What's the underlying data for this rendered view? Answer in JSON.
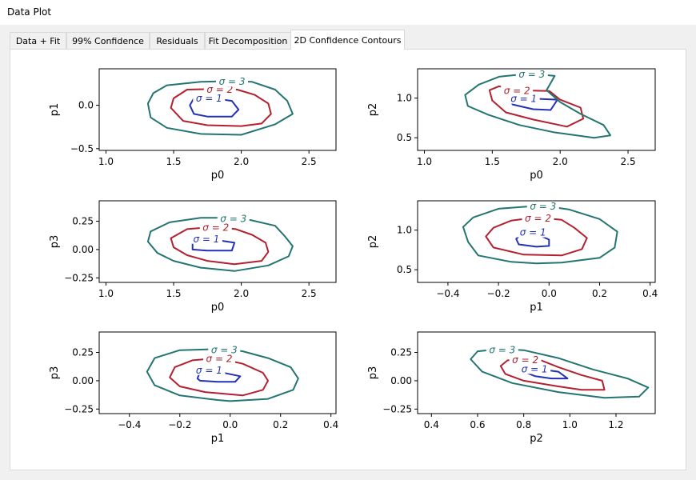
{
  "window": {
    "title": "Data Plot"
  },
  "tabs": [
    {
      "label": "Data + Fit"
    },
    {
      "label": "99% Confidence"
    },
    {
      "label": "Residuals"
    },
    {
      "label": "Fit Decomposition"
    },
    {
      "label": "2D Confidence Contours",
      "active": true
    }
  ],
  "colors": {
    "sigma1": "#2231b8",
    "sigma2": "#b3202f",
    "sigma3": "#237572"
  },
  "contour_labels": [
    "σ = 1",
    "σ = 2",
    "σ = 3"
  ],
  "chart_data": [
    {
      "type": "contour",
      "xlabel": "p0",
      "ylabel": "p1",
      "xlim": [
        0.95,
        2.7
      ],
      "ylim": [
        -0.52,
        0.42
      ],
      "xticks": [
        1.0,
        1.5,
        2.0,
        2.5
      ],
      "xtick_labels": [
        "1.0",
        "1.5",
        "2.0",
        "2.5"
      ],
      "yticks": [
        0.0,
        -0.5
      ],
      "ytick_labels": [
        "0.0",
        "−0.5"
      ],
      "contours": [
        {
          "level": "σ = 1",
          "points": [
            [
              1.75,
              0.09
            ],
            [
              1.65,
              0.08
            ],
            [
              1.62,
              0.0
            ],
            [
              1.65,
              -0.1
            ],
            [
              1.75,
              -0.13
            ],
            [
              1.93,
              -0.13
            ],
            [
              1.98,
              -0.05
            ],
            [
              1.93,
              0.05
            ]
          ]
        },
        {
          "level": "σ = 2",
          "points": [
            [
              1.83,
              0.19
            ],
            [
              1.6,
              0.18
            ],
            [
              1.5,
              0.08
            ],
            [
              1.48,
              -0.03
            ],
            [
              1.57,
              -0.18
            ],
            [
              1.75,
              -0.23
            ],
            [
              2.0,
              -0.24
            ],
            [
              2.15,
              -0.21
            ],
            [
              2.22,
              -0.1
            ],
            [
              2.2,
              0.02
            ],
            [
              2.1,
              0.12
            ],
            [
              1.97,
              0.18
            ]
          ]
        },
        {
          "level": "σ = 3",
          "points": [
            [
              1.92,
              0.28
            ],
            [
              1.7,
              0.27
            ],
            [
              1.45,
              0.23
            ],
            [
              1.35,
              0.14
            ],
            [
              1.31,
              0.02
            ],
            [
              1.33,
              -0.14
            ],
            [
              1.45,
              -0.26
            ],
            [
              1.7,
              -0.33
            ],
            [
              2.0,
              -0.34
            ],
            [
              2.25,
              -0.22
            ],
            [
              2.38,
              -0.1
            ],
            [
              2.34,
              0.05
            ],
            [
              2.25,
              0.18
            ],
            [
              2.08,
              0.27
            ]
          ]
        }
      ]
    },
    {
      "type": "contour",
      "xlabel": "p0",
      "ylabel": "p2",
      "xlim": [
        0.95,
        2.7
      ],
      "ylim": [
        0.34,
        1.37
      ],
      "xticks": [
        1.0,
        1.5,
        2.0,
        2.5
      ],
      "xtick_labels": [
        "1.0",
        "1.5",
        "2.0",
        "2.5"
      ],
      "yticks": [
        0.5,
        1.0
      ],
      "ytick_labels": [
        "0.5",
        "1.0"
      ],
      "contours": [
        {
          "level": "σ = 1",
          "points": [
            [
              1.72,
              1.0
            ],
            [
              1.68,
              1.05
            ],
            [
              1.62,
              1.01
            ],
            [
              1.65,
              0.92
            ],
            [
              1.8,
              0.86
            ],
            [
              1.93,
              0.85
            ],
            [
              1.98,
              0.98
            ]
          ]
        },
        {
          "level": "σ = 2",
          "points": [
            [
              1.67,
              1.1
            ],
            [
              1.55,
              1.15
            ],
            [
              1.48,
              1.1
            ],
            [
              1.5,
              0.97
            ],
            [
              1.6,
              0.82
            ],
            [
              1.8,
              0.73
            ],
            [
              2.05,
              0.64
            ],
            [
              2.17,
              0.74
            ],
            [
              2.15,
              0.88
            ],
            [
              2.0,
              0.98
            ],
            [
              1.92,
              1.09
            ]
          ]
        },
        {
          "level": "σ = 3",
          "points": [
            [
              1.78,
              1.31
            ],
            [
              1.55,
              1.27
            ],
            [
              1.4,
              1.17
            ],
            [
              1.3,
              1.04
            ],
            [
              1.32,
              0.9
            ],
            [
              1.47,
              0.79
            ],
            [
              1.7,
              0.66
            ],
            [
              1.95,
              0.57
            ],
            [
              2.25,
              0.5
            ],
            [
              2.37,
              0.53
            ],
            [
              2.32,
              0.66
            ],
            [
              2.15,
              0.8
            ],
            [
              2.0,
              0.95
            ],
            [
              1.9,
              1.1
            ],
            [
              1.96,
              1.28
            ]
          ]
        }
      ]
    },
    {
      "type": "contour",
      "xlabel": "p0",
      "ylabel": "p3",
      "xlim": [
        0.95,
        2.7
      ],
      "ylim": [
        -0.29,
        0.43
      ],
      "xticks": [
        1.0,
        1.5,
        2.0,
        2.5
      ],
      "xtick_labels": [
        "1.0",
        "1.5",
        "2.0",
        "2.5"
      ],
      "yticks": [
        0.25,
        0.0,
        -0.25
      ],
      "ytick_labels": [
        "0.25",
        "0.00",
        "−0.25"
      ],
      "contours": [
        {
          "level": "σ = 1",
          "points": [
            [
              1.73,
              0.1
            ],
            [
              1.64,
              0.07
            ],
            [
              1.64,
              0.0
            ],
            [
              1.75,
              -0.01
            ],
            [
              1.93,
              -0.01
            ],
            [
              1.95,
              0.06
            ]
          ]
        },
        {
          "level": "σ = 2",
          "points": [
            [
              1.8,
              0.2
            ],
            [
              1.6,
              0.18
            ],
            [
              1.48,
              0.1
            ],
            [
              1.5,
              0.02
            ],
            [
              1.6,
              -0.05
            ],
            [
              1.75,
              -0.1
            ],
            [
              1.95,
              -0.13
            ],
            [
              2.15,
              -0.1
            ],
            [
              2.2,
              -0.02
            ],
            [
              2.18,
              0.06
            ],
            [
              2.08,
              0.13
            ],
            [
              1.96,
              0.18
            ]
          ]
        },
        {
          "level": "σ = 3",
          "points": [
            [
              1.93,
              0.28
            ],
            [
              1.7,
              0.28
            ],
            [
              1.47,
              0.24
            ],
            [
              1.33,
              0.16
            ],
            [
              1.31,
              0.07
            ],
            [
              1.38,
              -0.03
            ],
            [
              1.5,
              -0.1
            ],
            [
              1.7,
              -0.16
            ],
            [
              1.95,
              -0.19
            ],
            [
              2.2,
              -0.14
            ],
            [
              2.35,
              -0.06
            ],
            [
              2.38,
              0.03
            ],
            [
              2.32,
              0.12
            ],
            [
              2.25,
              0.21
            ],
            [
              2.07,
              0.26
            ]
          ]
        }
      ]
    },
    {
      "type": "contour",
      "xlabel": "p1",
      "ylabel": "p2",
      "xlim": [
        -0.52,
        0.42
      ],
      "ylim": [
        0.34,
        1.37
      ],
      "xticks": [
        -0.4,
        -0.2,
        0.0,
        0.2,
        0.4
      ],
      "xtick_labels": [
        "−0.4",
        "−0.2",
        "0.0",
        "0.2",
        "0.4"
      ],
      "yticks": [
        0.5,
        1.0
      ],
      "ytick_labels": [
        "0.5",
        "1.0"
      ],
      "contours": [
        {
          "level": "σ = 1",
          "points": [
            [
              -0.07,
              0.98
            ],
            [
              -0.1,
              0.97
            ],
            [
              -0.13,
              0.89
            ],
            [
              -0.12,
              0.82
            ],
            [
              -0.05,
              0.79
            ],
            [
              0.0,
              0.8
            ],
            [
              0.0,
              0.88
            ]
          ]
        },
        {
          "level": "σ = 2",
          "points": [
            [
              -0.05,
              1.16
            ],
            [
              -0.15,
              1.12
            ],
            [
              -0.22,
              1.03
            ],
            [
              -0.25,
              0.92
            ],
            [
              -0.22,
              0.78
            ],
            [
              -0.1,
              0.69
            ],
            [
              0.05,
              0.68
            ],
            [
              0.13,
              0.76
            ],
            [
              0.15,
              0.9
            ],
            [
              0.1,
              1.03
            ],
            [
              0.05,
              1.13
            ]
          ]
        },
        {
          "level": "σ = 3",
          "points": [
            [
              -0.03,
              1.31
            ],
            [
              -0.2,
              1.27
            ],
            [
              -0.3,
              1.16
            ],
            [
              -0.34,
              1.04
            ],
            [
              -0.32,
              0.85
            ],
            [
              -0.28,
              0.68
            ],
            [
              -0.15,
              0.6
            ],
            [
              -0.05,
              0.58
            ],
            [
              0.05,
              0.59
            ],
            [
              0.2,
              0.65
            ],
            [
              0.26,
              0.78
            ],
            [
              0.27,
              0.98
            ],
            [
              0.2,
              1.14
            ],
            [
              0.08,
              1.26
            ]
          ]
        }
      ]
    },
    {
      "type": "contour",
      "xlabel": "p1",
      "ylabel": "p3",
      "xlim": [
        -0.52,
        0.42
      ],
      "ylim": [
        -0.29,
        0.43
      ],
      "xticks": [
        -0.4,
        -0.2,
        0.0,
        0.2,
        0.4
      ],
      "xtick_labels": [
        "−0.4",
        "−0.2",
        "0.0",
        "0.2",
        "0.4"
      ],
      "yticks": [
        0.25,
        0.0,
        -0.25
      ],
      "ytick_labels": [
        "0.25",
        "0.00",
        "−0.25"
      ],
      "contours": [
        {
          "level": "σ = 1",
          "points": [
            [
              -0.09,
              0.1
            ],
            [
              -0.12,
              0.08
            ],
            [
              -0.13,
              0.02
            ],
            [
              -0.12,
              0.0
            ],
            [
              -0.05,
              -0.01
            ],
            [
              0.02,
              -0.01
            ],
            [
              0.04,
              0.04
            ]
          ]
        },
        {
          "level": "σ = 2",
          "points": [
            [
              -0.05,
              0.2
            ],
            [
              -0.15,
              0.18
            ],
            [
              -0.22,
              0.12
            ],
            [
              -0.24,
              0.03
            ],
            [
              -0.2,
              -0.05
            ],
            [
              -0.1,
              -0.1
            ],
            [
              0.05,
              -0.13
            ],
            [
              0.13,
              -0.08
            ],
            [
              0.15,
              0.0
            ],
            [
              0.13,
              0.07
            ],
            [
              0.05,
              0.15
            ]
          ]
        },
        {
          "level": "σ = 3",
          "points": [
            [
              -0.03,
              0.28
            ],
            [
              -0.2,
              0.27
            ],
            [
              -0.3,
              0.2
            ],
            [
              -0.33,
              0.08
            ],
            [
              -0.3,
              -0.04
            ],
            [
              -0.2,
              -0.13
            ],
            [
              -0.05,
              -0.17
            ],
            [
              0.0,
              -0.18
            ],
            [
              0.15,
              -0.16
            ],
            [
              0.25,
              -0.08
            ],
            [
              0.27,
              0.02
            ],
            [
              0.24,
              0.12
            ],
            [
              0.15,
              0.2
            ],
            [
              0.05,
              0.26
            ]
          ]
        }
      ]
    },
    {
      "type": "contour",
      "xlabel": "p2",
      "ylabel": "p3",
      "xlim": [
        0.34,
        1.37
      ],
      "ylim": [
        -0.29,
        0.43
      ],
      "xticks": [
        0.4,
        0.6,
        0.8,
        1.0,
        1.2
      ],
      "xtick_labels": [
        "0.4",
        "0.6",
        "0.8",
        "1.0",
        "1.2"
      ],
      "yticks": [
        0.25,
        0.0,
        -0.25
      ],
      "ytick_labels": [
        "0.25",
        "0.00",
        "−0.25"
      ],
      "contours": [
        {
          "level": "σ = 1",
          "points": [
            [
              0.84,
              0.11
            ],
            [
              0.82,
              0.12
            ],
            [
              0.8,
              0.08
            ],
            [
              0.85,
              0.04
            ],
            [
              0.92,
              0.02
            ],
            [
              0.99,
              0.02
            ],
            [
              0.95,
              0.08
            ]
          ]
        },
        {
          "level": "σ = 2",
          "points": [
            [
              0.8,
              0.19
            ],
            [
              0.73,
              0.18
            ],
            [
              0.7,
              0.13
            ],
            [
              0.72,
              0.06
            ],
            [
              0.8,
              0.0
            ],
            [
              0.95,
              -0.05
            ],
            [
              1.05,
              -0.08
            ],
            [
              1.15,
              -0.08
            ],
            [
              1.14,
              0.0
            ],
            [
              1.05,
              0.05
            ],
            [
              0.95,
              0.12
            ],
            [
              0.85,
              0.2
            ]
          ]
        },
        {
          "level": "σ = 3",
          "points": [
            [
              0.7,
              0.28
            ],
            [
              0.6,
              0.26
            ],
            [
              0.57,
              0.19
            ],
            [
              0.62,
              0.08
            ],
            [
              0.75,
              -0.02
            ],
            [
              0.95,
              -0.1
            ],
            [
              1.15,
              -0.15
            ],
            [
              1.3,
              -0.14
            ],
            [
              1.34,
              -0.06
            ],
            [
              1.25,
              0.02
            ],
            [
              1.1,
              0.1
            ],
            [
              0.95,
              0.2
            ],
            [
              0.8,
              0.27
            ]
          ]
        }
      ]
    }
  ]
}
